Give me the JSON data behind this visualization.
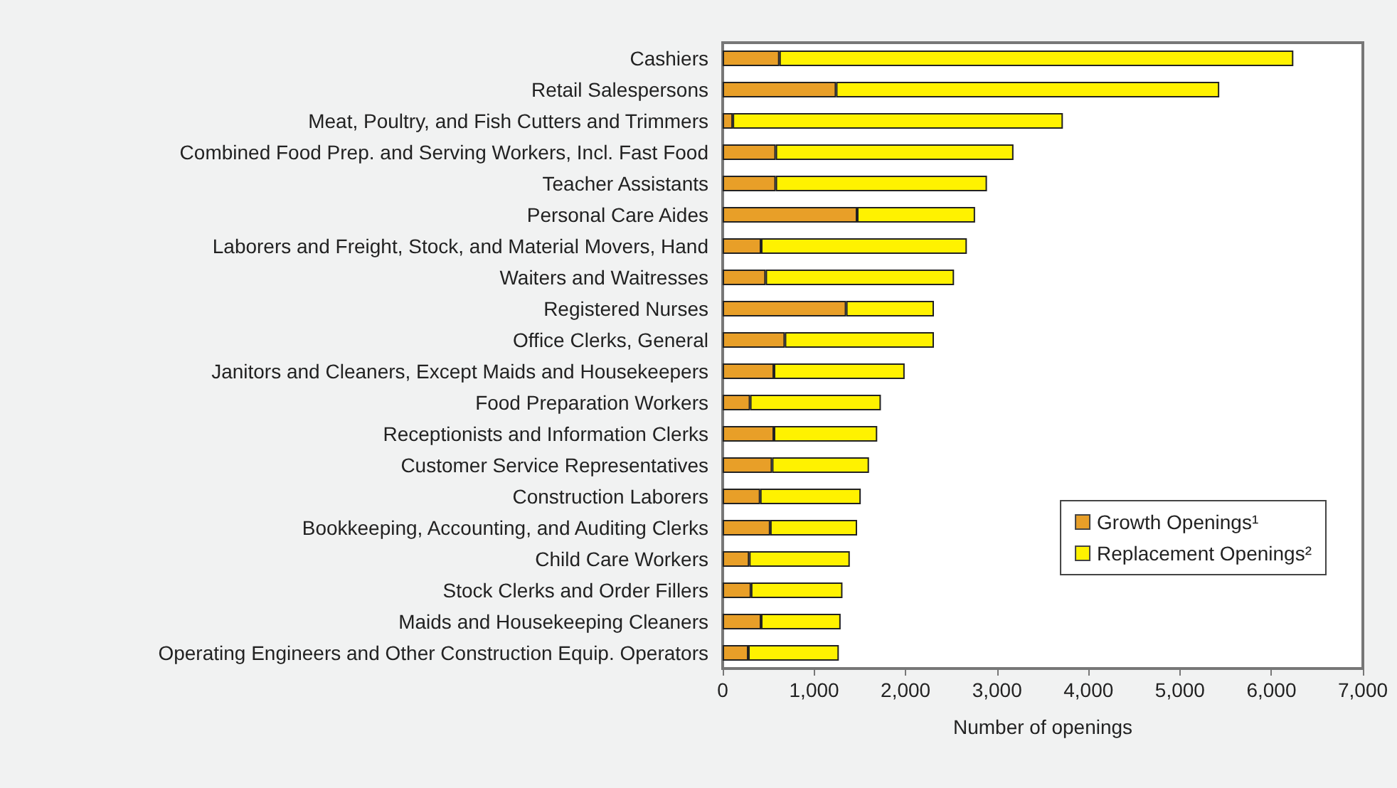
{
  "chart_data": {
    "type": "bar",
    "orientation": "horizontal",
    "stacked": true,
    "xlabel": "Number of openings",
    "categories": [
      "Cashiers",
      "Retail Salespersons",
      "Meat, Poultry, and Fish Cutters and Trimmers",
      "Combined Food Prep. and Serving Workers, Incl. Fast Food",
      "Teacher Assistants",
      "Personal Care Aides",
      "Laborers and Freight, Stock, and Material Movers, Hand",
      "Waiters and Waitresses",
      "Registered Nurses",
      "Office Clerks, General",
      "Janitors and Cleaners, Except Maids and Housekeepers",
      "Food Preparation Workers",
      "Receptionists and Information Clerks",
      "Customer Service Representatives",
      "Construction Laborers",
      "Bookkeeping, Accounting, and Auditing Clerks",
      "Child Care Workers",
      "Stock Clerks and Order Fillers",
      "Maids and Housekeeping Cleaners",
      "Operating Engineers and Other Construction Equip. Operators"
    ],
    "series": [
      {
        "name": "Growth Openings¹",
        "color": "#e89f28",
        "values": [
          620,
          1240,
          110,
          580,
          580,
          1470,
          420,
          470,
          1350,
          680,
          560,
          300,
          560,
          540,
          410,
          520,
          290,
          310,
          420,
          280
        ]
      },
      {
        "name": "Replacement Openings²",
        "color": "#fff200",
        "values": [
          5620,
          4190,
          3610,
          2600,
          2310,
          1290,
          2250,
          2060,
          960,
          1630,
          1430,
          1430,
          1130,
          1060,
          1100,
          950,
          1100,
          1000,
          870,
          990
        ]
      }
    ],
    "xlim": [
      0,
      7000
    ],
    "xticks": [
      0,
      {
        "value": 1000,
        "label": "1,000"
      },
      {
        "value": 2000,
        "label": "2,000"
      },
      {
        "value": 3000,
        "label": "3,000"
      },
      {
        "value": 4000,
        "label": "4,000"
      },
      {
        "value": 5000,
        "label": "5,000"
      },
      {
        "value": 6000,
        "label": "6,000"
      },
      {
        "value": 7000,
        "label": "7,000"
      }
    ],
    "grid": false,
    "legend": "bottom right"
  }
}
